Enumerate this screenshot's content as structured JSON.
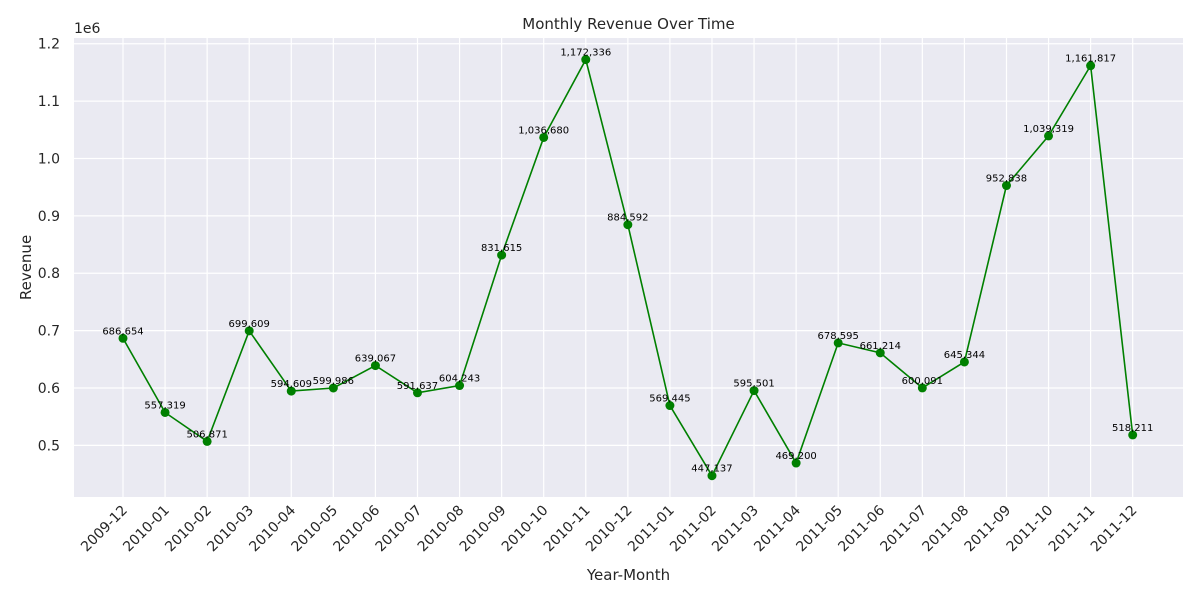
{
  "chart_data": {
    "type": "line",
    "title": "Monthly Revenue Over Time",
    "xlabel": "Year-Month",
    "ylabel": "Revenue",
    "y_offset_label": "1e6",
    "ylim": [
      0.41,
      1.21
    ],
    "y_ticks": [
      0.5,
      0.6,
      0.7,
      0.8,
      0.9,
      1.0,
      1.1,
      1.2
    ],
    "y_tick_labels": [
      "0.5",
      "0.6",
      "0.7",
      "0.8",
      "0.9",
      "1.0",
      "1.1",
      "1.2"
    ],
    "grid": true,
    "categories": [
      "2009-12",
      "2010-01",
      "2010-02",
      "2010-03",
      "2010-04",
      "2010-05",
      "2010-06",
      "2010-07",
      "2010-08",
      "2010-09",
      "2010-10",
      "2010-11",
      "2010-12",
      "2011-01",
      "2011-02",
      "2011-03",
      "2011-04",
      "2011-05",
      "2011-06",
      "2011-07",
      "2011-08",
      "2011-09",
      "2011-10",
      "2011-11",
      "2011-12"
    ],
    "series": [
      {
        "values": [
          686654,
          557319,
          506871,
          699609,
          594609,
          599986,
          639067,
          591637,
          604243,
          831615,
          1036680,
          1172336,
          884592,
          569445,
          447137,
          595501,
          469200,
          678595,
          661214,
          600091,
          645344,
          952838,
          1039319,
          1161817,
          518211
        ],
        "labels": [
          "686,654",
          "557,319",
          "506,871",
          "699,609",
          "594,609",
          "599,986",
          "639,067",
          "591,637",
          "604,243",
          "831,615",
          "1,036,680",
          "1,172,336",
          "884,592",
          "569,445",
          "447,137",
          "595,501",
          "469,200",
          "678,595",
          "661,214",
          "600,091",
          "645,344",
          "952,838",
          "1,039,319",
          "1,161,817",
          "518,211"
        ]
      }
    ],
    "colors": {
      "line": "#008000",
      "marker": "#008000",
      "background": "#EAEAF2",
      "grid": "#FFFFFF"
    }
  }
}
